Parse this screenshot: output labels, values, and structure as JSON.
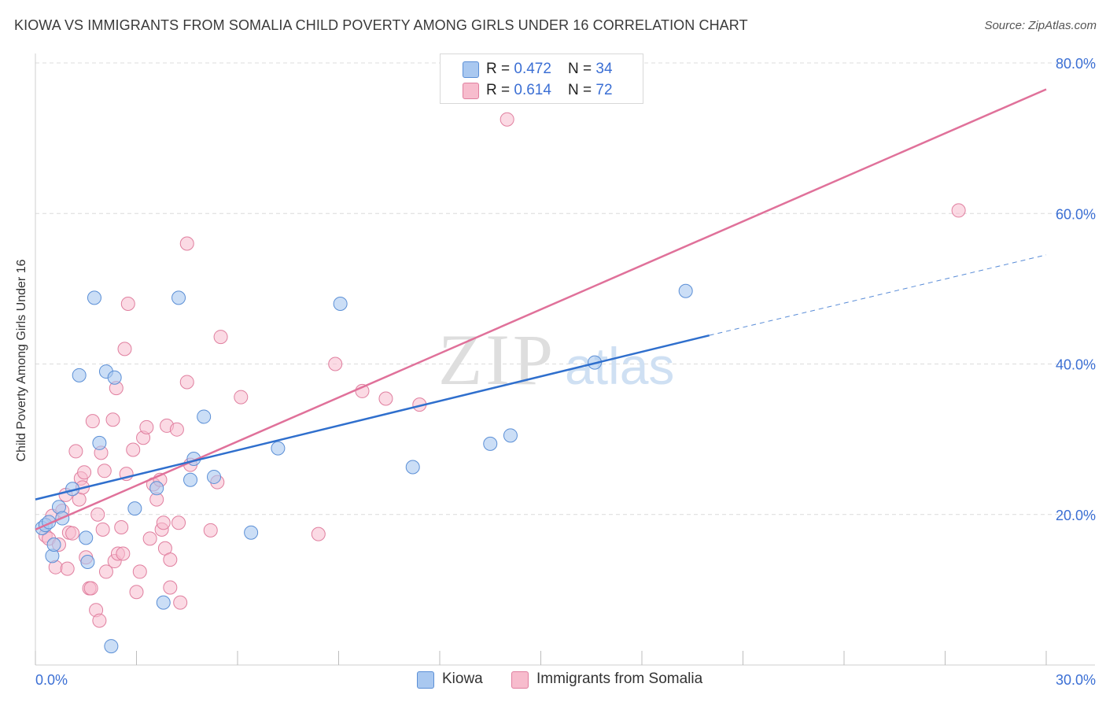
{
  "title": "KIOWA VS IMMIGRANTS FROM SOMALIA CHILD POVERTY AMONG GIRLS UNDER 16 CORRELATION CHART",
  "source": "Source: ZipAtlas.com",
  "watermark": {
    "zip": "ZIP",
    "atlas": "atlas"
  },
  "legend_top": {
    "rows": [
      {
        "r_label": "R = ",
        "r_value": "0.472",
        "n_label": "N = ",
        "n_value": "34"
      },
      {
        "r_label": "R = ",
        "r_value": "0.614",
        "n_label": "N = ",
        "n_value": "72"
      }
    ]
  },
  "legend_bottom": {
    "items": [
      {
        "label": "Kiowa"
      },
      {
        "label": "Immigrants from Somalia"
      }
    ]
  },
  "colors": {
    "kiowa_fill": "#a9c8f0",
    "kiowa_stroke": "#5b8fd6",
    "kiowa_line": "#2f6fcd",
    "somalia_fill": "#f7bccd",
    "somalia_stroke": "#e07f9f",
    "somalia_line": "#e0719a",
    "tick_label": "#3b6fd4",
    "grid": "#dcdcdc"
  },
  "chart_data": {
    "type": "scatter",
    "title": "KIOWA VS IMMIGRANTS FROM SOMALIA CHILD POVERTY AMONG GIRLS UNDER 16 CORRELATION CHART",
    "xlabel": "",
    "ylabel": "Child Poverty Among Girls Under 16",
    "xlim": [
      0,
      30
    ],
    "ylim": [
      0,
      80
    ],
    "x_tick_labels": [
      {
        "value": 0,
        "label": "0.0%"
      },
      {
        "value": 30,
        "label": "30.0%"
      }
    ],
    "y_tick_labels": [
      {
        "value": 20,
        "label": "20.0%"
      },
      {
        "value": 40,
        "label": "40.0%"
      },
      {
        "value": 60,
        "label": "60.0%"
      },
      {
        "value": 80,
        "label": "80.0%"
      }
    ],
    "x_minor_ticks": [
      0,
      3,
      6,
      9,
      12,
      15,
      18,
      21,
      24,
      27,
      30
    ],
    "series": [
      {
        "name": "Kiowa",
        "r": 0.472,
        "n": 34,
        "trend": {
          "x": [
            0,
            20
          ],
          "y": [
            22.0,
            43.8
          ]
        },
        "trend_dashed": {
          "x": [
            20,
            30
          ],
          "y": [
            43.8,
            54.5
          ]
        },
        "points": [
          [
            0.2,
            18.2
          ],
          [
            0.3,
            18.6
          ],
          [
            0.4,
            19.0
          ],
          [
            0.5,
            14.5
          ],
          [
            0.55,
            16.0
          ],
          [
            0.7,
            21.0
          ],
          [
            0.8,
            19.5
          ],
          [
            1.1,
            23.4
          ],
          [
            1.3,
            38.5
          ],
          [
            1.5,
            16.9
          ],
          [
            1.55,
            13.7
          ],
          [
            1.75,
            48.8
          ],
          [
            1.9,
            29.5
          ],
          [
            2.1,
            39.0
          ],
          [
            2.35,
            38.2
          ],
          [
            2.25,
            2.5
          ],
          [
            2.95,
            20.8
          ],
          [
            3.6,
            23.5
          ],
          [
            3.8,
            8.3
          ],
          [
            4.25,
            48.8
          ],
          [
            4.6,
            24.6
          ],
          [
            4.7,
            27.4
          ],
          [
            5.0,
            33.0
          ],
          [
            5.3,
            25.0
          ],
          [
            6.4,
            17.6
          ],
          [
            7.2,
            28.8
          ],
          [
            9.05,
            48.0
          ],
          [
            11.2,
            26.3
          ],
          [
            13.5,
            29.4
          ],
          [
            14.1,
            30.5
          ],
          [
            16.6,
            40.2
          ],
          [
            19.3,
            49.7
          ]
        ]
      },
      {
        "name": "Immigrants from Somalia",
        "r": 0.614,
        "n": 72,
        "trend": {
          "x": [
            0,
            30
          ],
          "y": [
            18.0,
            76.5
          ]
        },
        "points": [
          [
            0.3,
            17.2
          ],
          [
            0.4,
            16.8
          ],
          [
            0.5,
            19.8
          ],
          [
            0.6,
            13.0
          ],
          [
            0.7,
            16.0
          ],
          [
            0.8,
            20.5
          ],
          [
            0.9,
            22.6
          ],
          [
            0.95,
            12.8
          ],
          [
            1.0,
            17.6
          ],
          [
            1.1,
            17.5
          ],
          [
            1.2,
            28.4
          ],
          [
            1.3,
            22.0
          ],
          [
            1.35,
            24.8
          ],
          [
            1.4,
            23.6
          ],
          [
            1.45,
            25.6
          ],
          [
            1.5,
            14.3
          ],
          [
            1.6,
            10.2
          ],
          [
            1.65,
            10.2
          ],
          [
            1.7,
            32.4
          ],
          [
            1.8,
            7.3
          ],
          [
            1.85,
            20.0
          ],
          [
            1.9,
            5.9
          ],
          [
            1.95,
            28.2
          ],
          [
            2.0,
            18.0
          ],
          [
            2.05,
            25.8
          ],
          [
            2.1,
            12.4
          ],
          [
            2.3,
            32.6
          ],
          [
            2.35,
            13.8
          ],
          [
            2.4,
            36.8
          ],
          [
            2.45,
            14.8
          ],
          [
            2.55,
            18.3
          ],
          [
            2.6,
            14.8
          ],
          [
            2.65,
            42.0
          ],
          [
            2.7,
            25.4
          ],
          [
            2.75,
            48.0
          ],
          [
            2.9,
            28.6
          ],
          [
            3.0,
            9.7
          ],
          [
            3.1,
            12.4
          ],
          [
            3.2,
            30.2
          ],
          [
            3.3,
            31.6
          ],
          [
            3.4,
            16.8
          ],
          [
            3.5,
            24.0
          ],
          [
            3.6,
            22.0
          ],
          [
            3.7,
            24.6
          ],
          [
            3.75,
            18.0
          ],
          [
            3.8,
            18.9
          ],
          [
            3.85,
            15.5
          ],
          [
            3.9,
            31.8
          ],
          [
            4.0,
            14.0
          ],
          [
            4.0,
            10.3
          ],
          [
            4.2,
            31.3
          ],
          [
            4.25,
            18.9
          ],
          [
            4.3,
            8.3
          ],
          [
            4.5,
            37.6
          ],
          [
            4.5,
            56.0
          ],
          [
            4.6,
            26.6
          ],
          [
            5.2,
            17.9
          ],
          [
            5.4,
            24.3
          ],
          [
            5.5,
            43.6
          ],
          [
            6.1,
            35.6
          ],
          [
            8.4,
            17.4
          ],
          [
            8.9,
            40.0
          ],
          [
            9.7,
            36.4
          ],
          [
            10.4,
            35.4
          ],
          [
            11.4,
            34.6
          ],
          [
            14.0,
            72.5
          ],
          [
            27.4,
            60.4
          ]
        ]
      }
    ]
  }
}
